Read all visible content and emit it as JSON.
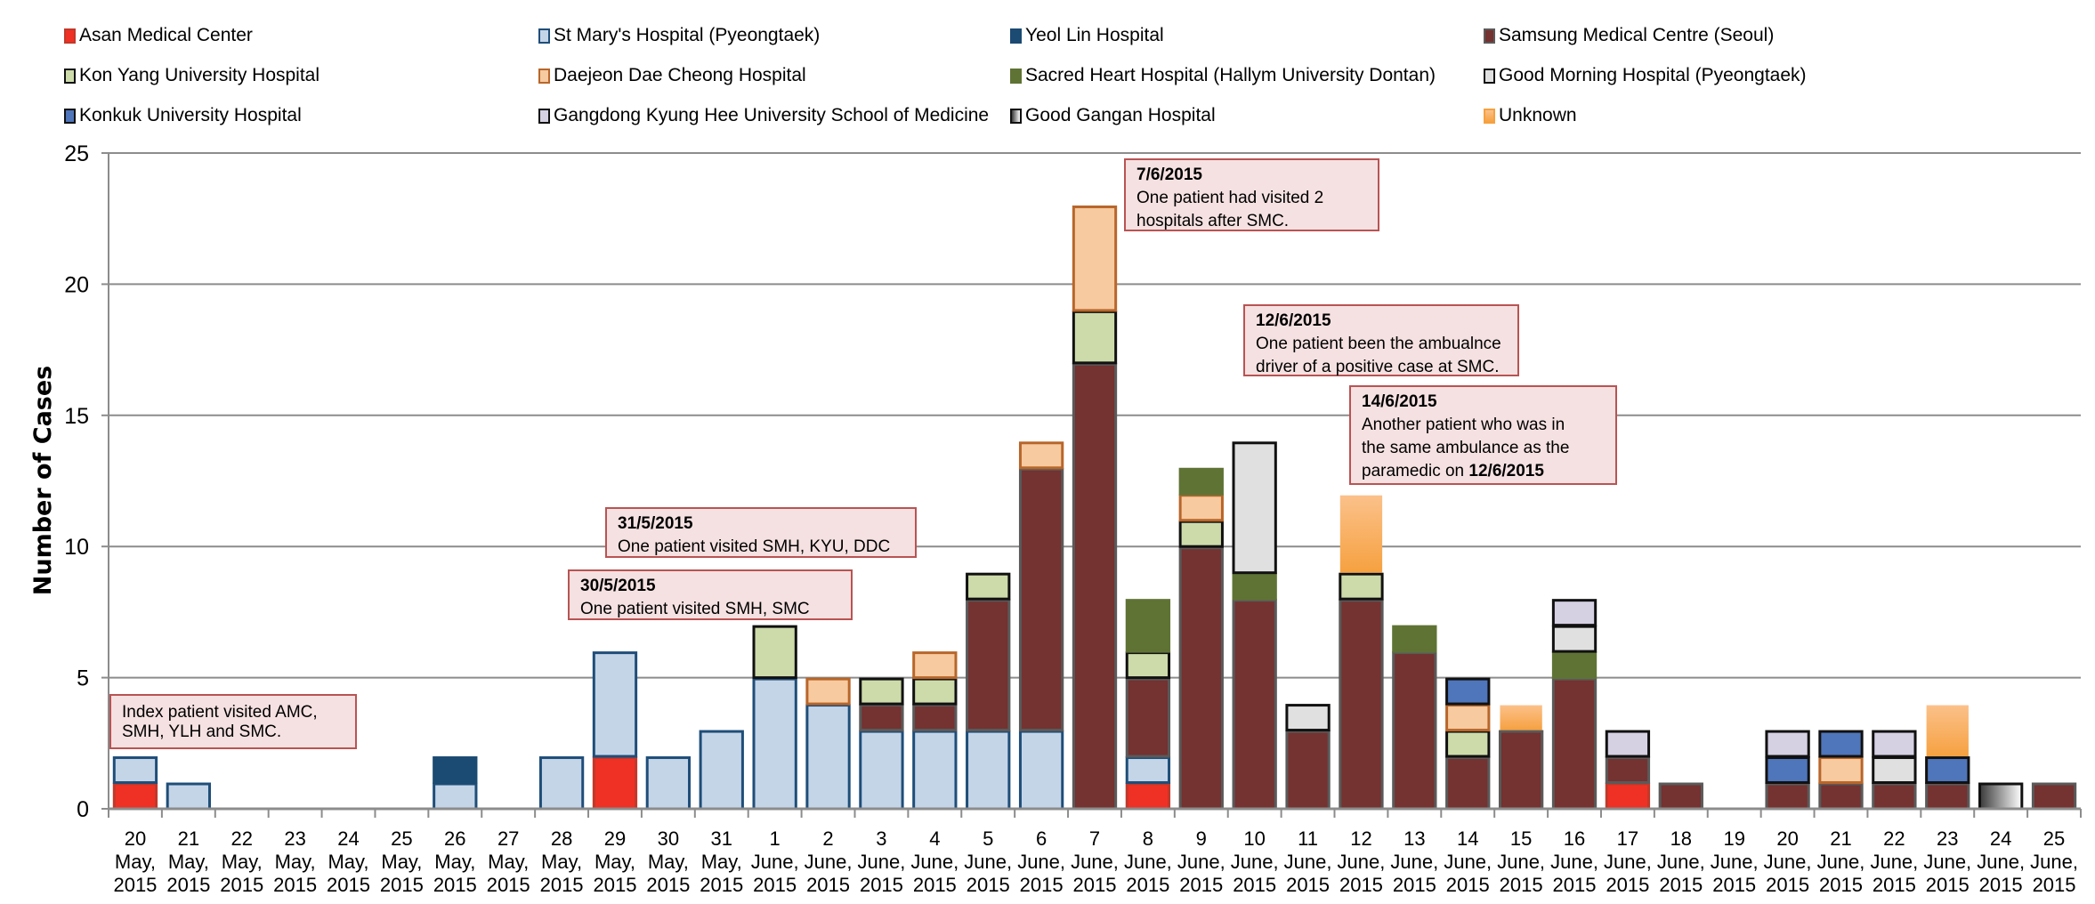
{
  "chart_data": {
    "type": "bar",
    "stacked": true,
    "title": "",
    "xlabel": "",
    "ylabel": "Number of Cases",
    "ylim": [
      0,
      25
    ],
    "yticks": [
      0,
      5,
      10,
      15,
      20,
      25
    ],
    "grid": true,
    "legend_position": "top",
    "categories": [
      {
        "day": "20",
        "month": "May,",
        "year": "2015"
      },
      {
        "day": "21",
        "month": "May,",
        "year": "2015"
      },
      {
        "day": "22",
        "month": "May,",
        "year": "2015"
      },
      {
        "day": "23",
        "month": "May,",
        "year": "2015"
      },
      {
        "day": "24",
        "month": "May,",
        "year": "2015"
      },
      {
        "day": "25",
        "month": "May,",
        "year": "2015"
      },
      {
        "day": "26",
        "month": "May,",
        "year": "2015"
      },
      {
        "day": "27",
        "month": "May,",
        "year": "2015"
      },
      {
        "day": "28",
        "month": "May,",
        "year": "2015"
      },
      {
        "day": "29",
        "month": "May,",
        "year": "2015"
      },
      {
        "day": "30",
        "month": "May,",
        "year": "2015"
      },
      {
        "day": "31",
        "month": "May,",
        "year": "2015"
      },
      {
        "day": "1",
        "month": "June,",
        "year": "2015"
      },
      {
        "day": "2",
        "month": "June,",
        "year": "2015"
      },
      {
        "day": "3",
        "month": "June,",
        "year": "2015"
      },
      {
        "day": "4",
        "month": "June,",
        "year": "2015"
      },
      {
        "day": "5",
        "month": "June,",
        "year": "2015"
      },
      {
        "day": "6",
        "month": "June,",
        "year": "2015"
      },
      {
        "day": "7",
        "month": "June,",
        "year": "2015"
      },
      {
        "day": "8",
        "month": "June,",
        "year": "2015"
      },
      {
        "day": "9",
        "month": "June,",
        "year": "2015"
      },
      {
        "day": "10",
        "month": "June,",
        "year": "2015"
      },
      {
        "day": "11",
        "month": "June,",
        "year": "2015"
      },
      {
        "day": "12",
        "month": "June,",
        "year": "2015"
      },
      {
        "day": "13",
        "month": "June,",
        "year": "2015"
      },
      {
        "day": "14",
        "month": "June,",
        "year": "2015"
      },
      {
        "day": "15",
        "month": "June,",
        "year": "2015"
      },
      {
        "day": "16",
        "month": "June,",
        "year": "2015"
      },
      {
        "day": "17",
        "month": "June,",
        "year": "2015"
      },
      {
        "day": "18",
        "month": "June,",
        "year": "2015"
      },
      {
        "day": "19",
        "month": "June,",
        "year": "2015"
      },
      {
        "day": "20",
        "month": "June,",
        "year": "2015"
      },
      {
        "day": "21",
        "month": "June,",
        "year": "2015"
      },
      {
        "day": "22",
        "month": "June,",
        "year": "2015"
      },
      {
        "day": "23",
        "month": "June,",
        "year": "2015"
      },
      {
        "day": "24",
        "month": "June,",
        "year": "2015"
      },
      {
        "day": "25",
        "month": "June,",
        "year": "2015"
      }
    ],
    "series": [
      {
        "key": "amc",
        "name": "Asan Medical Center",
        "fill": "#ee3124",
        "stroke": "#c0392b",
        "values": [
          1,
          0,
          0,
          0,
          0,
          0,
          0,
          0,
          0,
          2,
          0,
          0,
          0,
          0,
          0,
          0,
          0,
          0,
          0,
          1,
          0,
          0,
          0,
          0,
          0,
          0,
          0,
          0,
          1,
          0,
          0,
          0,
          0,
          0,
          0,
          0,
          0
        ]
      },
      {
        "key": "smh",
        "name": "St Mary's Hospital (Pyeongtaek)",
        "fill": "#c5d5e8",
        "stroke": "#1f4e79",
        "values": [
          1,
          1,
          0,
          0,
          0,
          0,
          1,
          0,
          2,
          4,
          2,
          3,
          5,
          4,
          3,
          3,
          3,
          3,
          0,
          1,
          0,
          0,
          0,
          0,
          0,
          0,
          0,
          0,
          0,
          0,
          0,
          0,
          0,
          0,
          0,
          0,
          0
        ]
      },
      {
        "key": "ylh",
        "name": "Yeol Lin Hospital",
        "fill": "#1b4a72",
        "stroke": "#1b4a72",
        "values": [
          0,
          0,
          0,
          0,
          0,
          0,
          1,
          0,
          0,
          0,
          0,
          0,
          0,
          0,
          0,
          0,
          0,
          0,
          0,
          0,
          0,
          0,
          0,
          0,
          0,
          0,
          0,
          0,
          0,
          0,
          0,
          0,
          0,
          0,
          0,
          0,
          0
        ]
      },
      {
        "key": "smc",
        "name": "Samsung Medical Centre (Seoul)",
        "fill": "#743230",
        "stroke": "#5a5a5a",
        "values": [
          0,
          0,
          0,
          0,
          0,
          0,
          0,
          0,
          0,
          0,
          0,
          0,
          0,
          0,
          1,
          1,
          5,
          10,
          17,
          3,
          10,
          8,
          3,
          8,
          6,
          2,
          3,
          5,
          1,
          1,
          0,
          1,
          1,
          1,
          1,
          0,
          1
        ]
      },
      {
        "key": "kyu",
        "name": "Kon Yang University Hospital",
        "fill": "#cddbaa",
        "stroke": "#111111",
        "values": [
          0,
          0,
          0,
          0,
          0,
          0,
          0,
          0,
          0,
          0,
          0,
          0,
          2,
          0,
          1,
          1,
          1,
          0,
          2,
          1,
          1,
          0,
          0,
          1,
          0,
          1,
          0,
          0,
          0,
          0,
          0,
          0,
          0,
          0,
          0,
          0,
          0
        ]
      },
      {
        "key": "ddc",
        "name": "Daejeon Dae Cheong Hospital",
        "fill": "#f7caa0",
        "stroke": "#b8662a",
        "values": [
          0,
          0,
          0,
          0,
          0,
          0,
          0,
          0,
          0,
          0,
          0,
          0,
          0,
          1,
          0,
          1,
          0,
          1,
          4,
          0,
          1,
          0,
          0,
          0,
          0,
          1,
          0,
          0,
          0,
          0,
          0,
          0,
          1,
          0,
          0,
          0,
          0
        ]
      },
      {
        "key": "shh",
        "name": "Sacred Heart Hospital (Hallym University Dontan)",
        "fill": "#5f7335",
        "stroke": "#5f7335",
        "values": [
          0,
          0,
          0,
          0,
          0,
          0,
          0,
          0,
          0,
          0,
          0,
          0,
          0,
          0,
          0,
          0,
          0,
          0,
          0,
          2,
          1,
          1,
          0,
          0,
          1,
          0,
          0,
          1,
          0,
          0,
          0,
          0,
          0,
          0,
          0,
          0,
          0
        ]
      },
      {
        "key": "gmh",
        "name": "Good Morning Hospital (Pyeongtaek)",
        "fill": "#e0e0e0",
        "stroke": "#111111",
        "values": [
          0,
          0,
          0,
          0,
          0,
          0,
          0,
          0,
          0,
          0,
          0,
          0,
          0,
          0,
          0,
          0,
          0,
          0,
          0,
          0,
          0,
          5,
          1,
          0,
          0,
          0,
          0,
          1,
          0,
          0,
          0,
          0,
          0,
          1,
          0,
          0,
          0
        ]
      },
      {
        "key": "konkuk",
        "name": "Konkuk University Hospital",
        "fill": "#4f75ba",
        "stroke": "#111111",
        "values": [
          0,
          0,
          0,
          0,
          0,
          0,
          0,
          0,
          0,
          0,
          0,
          0,
          0,
          0,
          0,
          0,
          0,
          0,
          0,
          0,
          0,
          0,
          0,
          0,
          0,
          1,
          0,
          0,
          0,
          0,
          0,
          1,
          1,
          0,
          1,
          0,
          0
        ]
      },
      {
        "key": "gkh",
        "name": "Gangdong Kyung Hee University School of Medicine",
        "fill": "#d6d0e3",
        "stroke": "#111111",
        "values": [
          0,
          0,
          0,
          0,
          0,
          0,
          0,
          0,
          0,
          0,
          0,
          0,
          0,
          0,
          0,
          0,
          0,
          0,
          0,
          0,
          0,
          0,
          0,
          0,
          0,
          0,
          0,
          1,
          1,
          0,
          0,
          1,
          0,
          1,
          0,
          0,
          0
        ]
      },
      {
        "key": "ggh",
        "name": "Good Gangan Hospital",
        "fill": "gradient-gray",
        "stroke": "#111111",
        "values": [
          0,
          0,
          0,
          0,
          0,
          0,
          0,
          0,
          0,
          0,
          0,
          0,
          0,
          0,
          0,
          0,
          0,
          0,
          0,
          0,
          0,
          0,
          0,
          0,
          0,
          0,
          0,
          0,
          0,
          0,
          0,
          0,
          0,
          0,
          0,
          1,
          0
        ]
      },
      {
        "key": "unknown",
        "name": "Unknown",
        "fill": "gradient-orange",
        "stroke": "none",
        "values": [
          0,
          0,
          0,
          0,
          0,
          0,
          0,
          0,
          0,
          0,
          0,
          0,
          0,
          0,
          0,
          0,
          0,
          0,
          0,
          0,
          0,
          0,
          0,
          3,
          0,
          0,
          1,
          0,
          0,
          0,
          0,
          0,
          0,
          0,
          2,
          0,
          0
        ]
      }
    ],
    "stack_order": {
      "0": [
        "amc",
        "smh"
      ],
      "1": [
        "smh"
      ],
      "6": [
        "smh",
        "ylh"
      ],
      "8": [
        "smh"
      ],
      "9": [
        "amc",
        "smh"
      ],
      "10": [
        "smh"
      ],
      "11": [
        "smh"
      ],
      "12": [
        "smh",
        "kyu"
      ],
      "13": [
        "smh",
        "ddc"
      ],
      "14": [
        "smh",
        "smc",
        "kyu"
      ],
      "15": [
        "smh",
        "smc",
        "kyu",
        "ddc"
      ],
      "16": [
        "smh",
        "smc",
        "kyu"
      ],
      "17": [
        "smh",
        "smc",
        "ddc"
      ],
      "18": [
        "smc",
        "kyu",
        "ddc"
      ],
      "19": [
        "amc",
        "smh",
        "smc",
        "kyu",
        "shh"
      ],
      "20": [
        "smc",
        "kyu",
        "ddc",
        "shh"
      ],
      "21": [
        "smc",
        "shh",
        "gmh"
      ],
      "22": [
        "smc",
        "gmh"
      ],
      "23": [
        "smc",
        "kyu",
        "unknown"
      ],
      "24": [
        "smc",
        "shh"
      ],
      "25": [
        "smc",
        "kyu",
        "ddc",
        "konkuk"
      ],
      "26": [
        "smc",
        "unknown"
      ],
      "27": [
        "smc",
        "shh",
        "gmh",
        "gkh"
      ],
      "28": [
        "amc",
        "smc",
        "gkh"
      ],
      "29": [
        "smc"
      ],
      "31": [
        "smc",
        "konkuk",
        "gkh"
      ],
      "32": [
        "smc",
        "ddc",
        "konkuk"
      ],
      "33": [
        "smc",
        "gmh",
        "gkh"
      ],
      "34": [
        "smc",
        "konkuk",
        "unknown"
      ],
      "35": [
        "ggh"
      ],
      "36": [
        "smc"
      ]
    },
    "annotations": [
      {
        "date": "",
        "lines": [
          "Index patient visited AMC,",
          "SMH, YLH and SMC."
        ]
      },
      {
        "date": "30/5/2015",
        "lines": [
          "One patient visited SMH, SMC"
        ]
      },
      {
        "date": "31/5/2015",
        "lines": [
          "One patient visited SMH, KYU, DDC"
        ]
      },
      {
        "date": "7/6/2015",
        "lines": [
          "One patient had visited 2",
          "hospitals after SMC."
        ]
      },
      {
        "date": "12/6/2015",
        "lines": [
          "One patient been the ambualnce",
          "driver of a positive case at SMC."
        ]
      },
      {
        "date": "14/6/2015",
        "lines": [
          "Another patient who was in",
          "the same ambulance as the"
        ],
        "last_line_prefix": "paramedic on ",
        "last_line_bold": "12/6/2015"
      }
    ]
  }
}
